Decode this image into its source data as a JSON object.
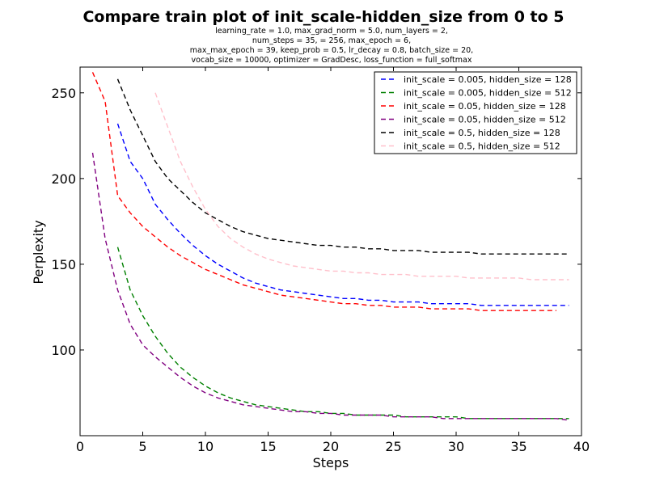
{
  "chart_data": {
    "type": "line",
    "title": "Compare train plot of init_scale-hidden_size from 0 to 5",
    "subtitle_lines": [
      "learning_rate = 1.0, max_grad_norm = 5.0, num_layers = 2,",
      "num_steps = 35,    = 256, max_epoch = 6,",
      "max_max_epoch = 39, keep_prob = 0.5, lr_decay = 0.8, batch_size = 20,",
      "vocab_size = 10000, optimizer = GradDesc, loss_function = full_softmax"
    ],
    "xlabel": "Steps",
    "ylabel": "Perplexity",
    "xlim": [
      0,
      40
    ],
    "ylim": [
      50,
      265
    ],
    "xticks": [
      0,
      5,
      10,
      15,
      20,
      25,
      30,
      35,
      40
    ],
    "yticks": [
      100,
      150,
      200,
      250
    ],
    "grid": false,
    "legend_position": "top-right",
    "series": [
      {
        "name": "init_scale = 0.005, hidden_size = 128",
        "color": "#0000ff",
        "x": [
          3.0,
          4.0,
          5.0,
          6.0,
          7.0,
          8.0,
          9.0,
          10.0,
          11.0,
          12.0,
          13.0,
          14.0,
          15.0,
          16.0,
          17.0,
          18.0,
          19.0,
          20.0,
          21.0,
          22.0,
          23.0,
          24.0,
          25.0,
          26.0,
          27.0,
          28.0,
          29.0,
          30.0,
          31.0,
          32.0,
          33.0,
          34.0,
          35.0,
          36.0,
          37.0,
          38.0,
          39.0
        ],
        "y": [
          232,
          210,
          200,
          185,
          176,
          168,
          161,
          155,
          150,
          146,
          142,
          139,
          137,
          135,
          134,
          133,
          132,
          131,
          130,
          130,
          129,
          129,
          128,
          128,
          128,
          127,
          127,
          127,
          127,
          126,
          126,
          126,
          126,
          126,
          126,
          126,
          126
        ]
      },
      {
        "name": "init_scale = 0.005, hidden_size = 512",
        "color": "#008000",
        "x": [
          3.0,
          4.0,
          5.0,
          6.0,
          7.0,
          8.0,
          9.0,
          10.0,
          11.0,
          12.0,
          13.0,
          14.0,
          15.0,
          16.0,
          17.0,
          18.0,
          19.0,
          20.0,
          21.0,
          22.0,
          23.0,
          24.0,
          25.0,
          26.0,
          27.0,
          28.0,
          29.0,
          30.0,
          31.0,
          32.0,
          33.0,
          34.0,
          35.0,
          36.0,
          37.0,
          38.0,
          39.0
        ],
        "y": [
          160,
          135,
          120,
          108,
          98,
          90,
          84,
          79,
          75,
          72,
          70,
          68,
          67,
          66,
          65,
          64,
          64,
          63,
          63,
          62,
          62,
          62,
          62,
          61,
          61,
          61,
          61,
          61,
          60,
          60,
          60,
          60,
          60,
          60,
          60,
          60,
          60
        ]
      },
      {
        "name": "init_scale = 0.05, hidden_size = 128",
        "color": "#ff0000",
        "x": [
          1.0,
          2.0,
          3.0,
          4.0,
          5.0,
          6.0,
          7.0,
          8.0,
          9.0,
          10.0,
          11.0,
          12.0,
          13.0,
          14.0,
          15.0,
          16.0,
          17.0,
          18.0,
          19.0,
          20.0,
          21.0,
          22.0,
          23.0,
          24.0,
          25.0,
          26.0,
          27.0,
          28.0,
          29.0,
          30.0,
          31.0,
          32.0,
          33.0,
          34.0,
          35.0,
          36.0,
          37.0,
          38.0
        ],
        "y": [
          262,
          245,
          190,
          180,
          172,
          166,
          160,
          155,
          151,
          147,
          144,
          141,
          138,
          136,
          134,
          132,
          131,
          130,
          129,
          128,
          127,
          127,
          126,
          126,
          125,
          125,
          125,
          124,
          124,
          124,
          124,
          123,
          123,
          123,
          123,
          123,
          123,
          123
        ]
      },
      {
        "name": "init_scale = 0.05, hidden_size = 512",
        "color": "#800080",
        "x": [
          1.0,
          2.0,
          3.0,
          4.0,
          5.0,
          6.0,
          7.0,
          8.0,
          9.0,
          10.0,
          11.0,
          12.0,
          13.0,
          14.0,
          15.0,
          16.0,
          17.0,
          18.0,
          19.0,
          20.0,
          21.0,
          22.0,
          23.0,
          24.0,
          25.0,
          26.0,
          27.0,
          28.0,
          29.0,
          30.0,
          31.0,
          32.0,
          33.0,
          34.0,
          35.0,
          36.0,
          37.0,
          38.0,
          39.0
        ],
        "y": [
          215,
          165,
          135,
          115,
          103,
          96,
          90,
          84,
          79,
          75,
          72,
          70,
          68,
          67,
          66,
          65,
          64,
          64,
          63,
          63,
          62,
          62,
          62,
          62,
          61,
          61,
          61,
          61,
          60,
          60,
          60,
          60,
          60,
          60,
          60,
          60,
          60,
          60,
          59
        ]
      },
      {
        "name": "init_scale = 0.5, hidden_size = 128",
        "color": "#000000",
        "x": [
          3.0,
          4.0,
          5.0,
          6.0,
          7.0,
          8.0,
          9.0,
          10.0,
          11.0,
          12.0,
          13.0,
          14.0,
          15.0,
          16.0,
          17.0,
          18.0,
          19.0,
          20.0,
          21.0,
          22.0,
          23.0,
          24.0,
          25.0,
          26.0,
          27.0,
          28.0,
          29.0,
          30.0,
          31.0,
          32.0,
          33.0,
          34.0,
          35.0,
          36.0,
          37.0,
          38.0,
          39.0
        ],
        "y": [
          258,
          240,
          225,
          210,
          200,
          193,
          186,
          180,
          176,
          172,
          169,
          167,
          165,
          164,
          163,
          162,
          161,
          161,
          160,
          160,
          159,
          159,
          158,
          158,
          158,
          157,
          157,
          157,
          157,
          156,
          156,
          156,
          156,
          156,
          156,
          156,
          156
        ]
      },
      {
        "name": "init_scale = 0.5, hidden_size = 512",
        "color": "#ffc0cb",
        "x": [
          6.0,
          7.0,
          8.0,
          9.0,
          10.0,
          11.0,
          12.0,
          13.0,
          14.0,
          15.0,
          16.0,
          17.0,
          18.0,
          19.0,
          20.0,
          21.0,
          22.0,
          23.0,
          24.0,
          25.0,
          26.0,
          27.0,
          28.0,
          29.0,
          30.0,
          31.0,
          32.0,
          33.0,
          34.0,
          35.0,
          36.0,
          37.0,
          38.0,
          39.0
        ],
        "y": [
          250,
          230,
          210,
          195,
          182,
          172,
          165,
          160,
          156,
          153,
          151,
          149,
          148,
          147,
          146,
          146,
          145,
          145,
          144,
          144,
          144,
          143,
          143,
          143,
          143,
          142,
          142,
          142,
          142,
          142,
          141,
          141,
          141,
          141
        ]
      }
    ]
  }
}
